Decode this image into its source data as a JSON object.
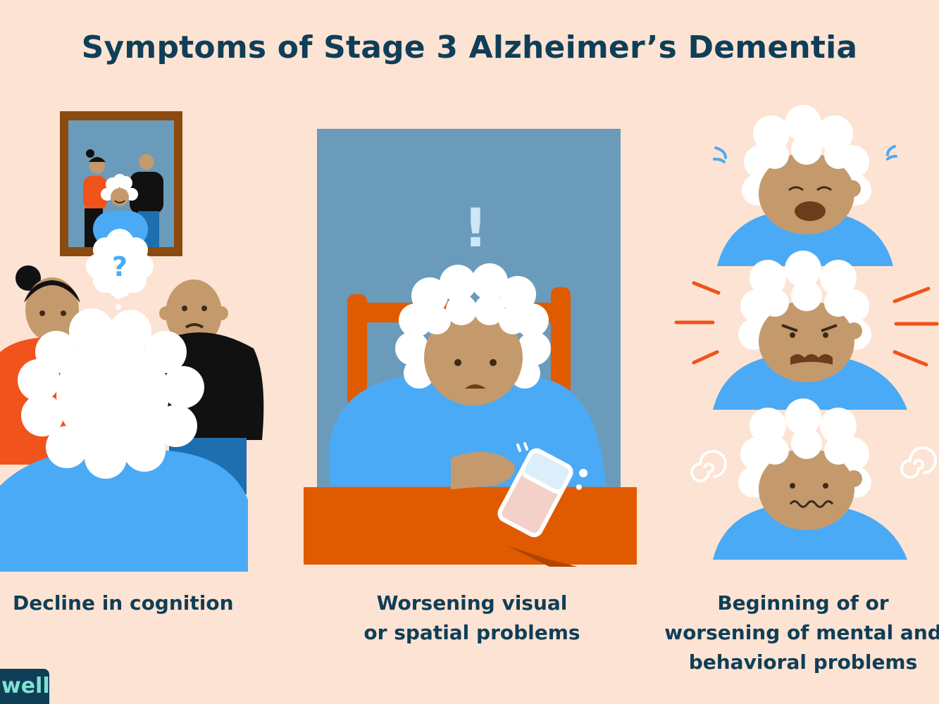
{
  "title": "Symptoms of Stage 3 Alzheimer’s Dementia",
  "panels": [
    {
      "caption_lines": [
        "Decline in cognition"
      ],
      "illustration": "woman-looking-at-family-photo-with-question-mark"
    },
    {
      "caption_lines": [
        "Worsening visual",
        "or spatial problems"
      ],
      "illustration": "woman-knocking-over-glass"
    },
    {
      "caption_lines": [
        "Beginning of or",
        "worsening of mental and",
        "behavioral problems"
      ],
      "illustration": "three-faces-crying-angry-confused"
    }
  ],
  "symbols": {
    "question": "?",
    "exclamation": "!"
  },
  "brand": "well",
  "colors": {
    "background": "#fde3d3",
    "title": "#0f3e58",
    "blue_clothing": "#4aaaf5",
    "orange": "#e05a00",
    "skin": "#c49a6c",
    "hair": "#ffffff",
    "wall": "#6b9bbb"
  }
}
